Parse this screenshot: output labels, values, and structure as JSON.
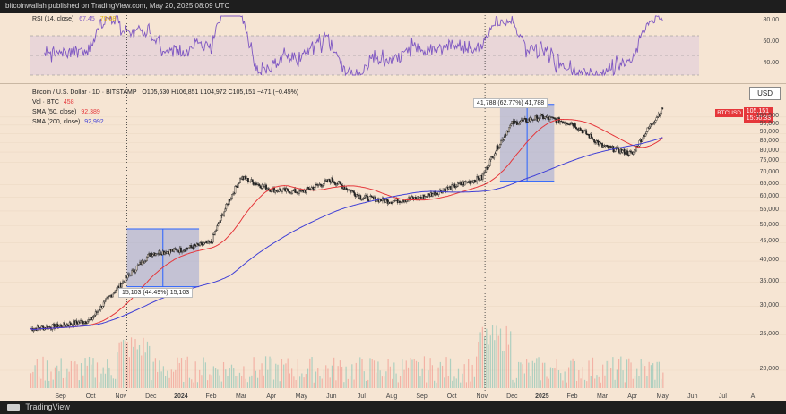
{
  "header": {
    "publisher": "bitcoinwallah published on TradingView.com, May 20, 2025 08:09 UTC"
  },
  "footer": {
    "brand": "TradingView"
  },
  "rsi": {
    "label": "RSI (14, close)",
    "value1": "67.45",
    "value2": "70.08",
    "levels": [
      "80.00",
      "60.00",
      "40.00"
    ]
  },
  "legend": {
    "symbol_line": "Bitcoin / U.S. Dollar · 1D · BITSTAMP",
    "ohlc": "O105,630 H106,851 L104,972 C105,151 −471 (−0.45%)",
    "vol_label": "Vol · BTC",
    "vol_value": "458",
    "sma50_label": "SMA (50, close)",
    "sma50_value": "92,389",
    "sma200_label": "SMA (200, close)",
    "sma200_value": "92,992"
  },
  "price_axis": {
    "currency": "USD",
    "ticks": [
      "100,000",
      "95,000",
      "90,000",
      "85,000",
      "80,000",
      "75,000",
      "70,000",
      "65,000",
      "60,000",
      "55,000",
      "50,000",
      "45,000",
      "40,000",
      "35,000",
      "30,000",
      "25,000",
      "20,000"
    ],
    "last_tag": "BTCUSD",
    "last_price": "105,151",
    "countdown": "15:50:33"
  },
  "annotations": {
    "box1": "15,103 (44.49%) 15,103",
    "box2": "41,788 (62.77%) 41,788"
  },
  "x_axis": [
    "Sep",
    "Oct",
    "Nov",
    "Dec",
    "2024",
    "Feb",
    "Mar",
    "Apr",
    "May",
    "Jun",
    "Jul",
    "Aug",
    "Sep",
    "Oct",
    "Nov",
    "Dec",
    "2025",
    "Feb",
    "Mar",
    "Apr",
    "May",
    "Jun",
    "Jul",
    "A"
  ],
  "colors": {
    "background": "#f6e5d3",
    "up_candle": "#26a69a",
    "down_candle": "#ef5350",
    "sma50": "#e5373b",
    "sma200": "#3f3fd6",
    "rsi_line": "#7e57c2",
    "measure_box": "#9aa5d6"
  },
  "chart_data": {
    "type": "candlestick",
    "title": "Bitcoin / U.S. Dollar · 1D · BITSTAMP",
    "ylabel": "USD",
    "ylim": [
      20000,
      110000
    ],
    "y_scale": "log",
    "approx_close_series": {
      "x": [
        "2023-08",
        "2023-09",
        "2023-10",
        "2023-11",
        "2023-12",
        "2024-01",
        "2024-02",
        "2024-03",
        "2024-04",
        "2024-05",
        "2024-06",
        "2024-07",
        "2024-08",
        "2024-09",
        "2024-10",
        "2024-11",
        "2024-12",
        "2025-01",
        "2025-02",
        "2025-03",
        "2025-04",
        "2025-05"
      ],
      "values": [
        26000,
        26500,
        27500,
        34500,
        42000,
        43000,
        45000,
        68000,
        63000,
        62000,
        67000,
        60000,
        58500,
        60000,
        64000,
        68000,
        96000,
        100000,
        96000,
        83000,
        79000,
        105151
      ]
    },
    "sma50_end": 92389,
    "sma200_end": 92992,
    "measurements": [
      {
        "label": "15,103 (44.49%) 15,103",
        "from": 34000,
        "to": 49103
      },
      {
        "label": "41,788 (62.77%) 41,788",
        "from": 66500,
        "to": 108288
      }
    ],
    "rsi_levels": [
      80,
      60,
      40
    ]
  }
}
